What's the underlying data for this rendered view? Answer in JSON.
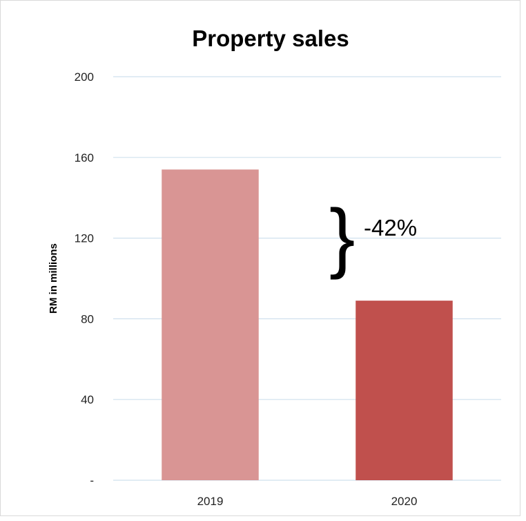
{
  "chart_data": {
    "type": "bar",
    "title": "Property sales",
    "ylabel": "RM in millions",
    "xlabel": "",
    "categories": [
      "2019",
      "2020"
    ],
    "values": [
      154,
      89
    ],
    "ylim": [
      0,
      200
    ],
    "yticks": [
      0,
      40,
      80,
      120,
      160,
      200
    ],
    "ytick_labels": [
      "-",
      "40",
      "80",
      "120",
      "160",
      "200"
    ],
    "grid": true,
    "legend": "none",
    "colors": [
      "#d99594",
      "#c0504d"
    ],
    "annotation": {
      "text": "-42%",
      "symbol": "}"
    }
  }
}
